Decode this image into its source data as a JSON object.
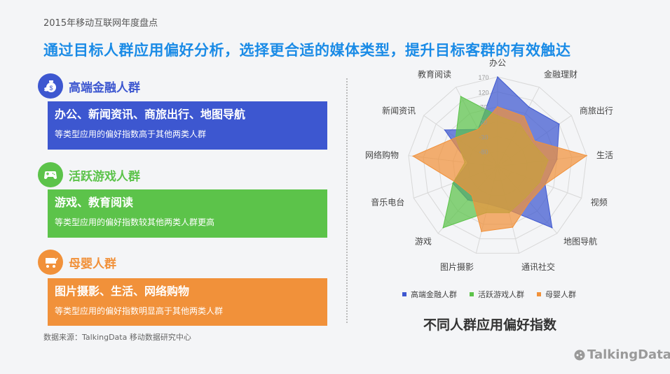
{
  "header": {
    "top_title": "2015年移动互联网年度盘点",
    "headline": "通过目标人群应用偏好分析，选择更合适的媒体类型，提升目标客群的有效触达"
  },
  "colors": {
    "blue": "#3d57d0",
    "green": "#5cc34a",
    "orange": "#f1913a",
    "headline": "#1a8be6"
  },
  "groups": [
    {
      "title": "高端金融人群",
      "icon": "money-bag-icon",
      "main": "办公、新闻资讯、商旅出行、地图导航",
      "sub": "等类型应用的偏好指数高于其他两类人群"
    },
    {
      "title": "活跃游戏人群",
      "icon": "gamepad-icon",
      "main": "游戏、教育阅读",
      "sub": "等类型应用的偏好指数较其他两类人群更高"
    },
    {
      "title": "母婴人群",
      "icon": "baby-stroller-icon",
      "main": "图片摄影、生活、网络购物",
      "sub": "等类型应用的偏好指数明显高于其他两类人群"
    }
  ],
  "source": "数据来源：TalkingData 移动数据研究中心",
  "chart_data": {
    "type": "radar",
    "title": "不同人群应用偏好指数",
    "categories": [
      "办公",
      "金融理财",
      "商旅出行",
      "生活",
      "视频",
      "地图导航",
      "通讯社交",
      "图片摄影",
      "游戏",
      "音乐电台",
      "网络购物",
      "新闻资讯",
      "教育阅读"
    ],
    "ticks": [
      170,
      120,
      70,
      20,
      -30,
      -80
    ],
    "rlim": [
      -130,
      170
    ],
    "grid": true,
    "legend_position": "bottom",
    "series": [
      {
        "name": "高端金融人群",
        "color": "#3d57d0",
        "values": [
          170,
          95,
          120,
          70,
          40,
          145,
          20,
          0,
          20,
          30,
          -30,
          85,
          10
        ]
      },
      {
        "name": "活跃游戏人群",
        "color": "#5cc34a",
        "values": [
          40,
          30,
          10,
          40,
          20,
          10,
          30,
          30,
          145,
          30,
          -20,
          40,
          135
        ]
      },
      {
        "name": "母婴人群",
        "color": "#f1913a",
        "values": [
          70,
          60,
          20,
          170,
          40,
          30,
          80,
          95,
          0,
          20,
          155,
          40,
          10
        ]
      }
    ]
  },
  "brand": "TalkingData"
}
